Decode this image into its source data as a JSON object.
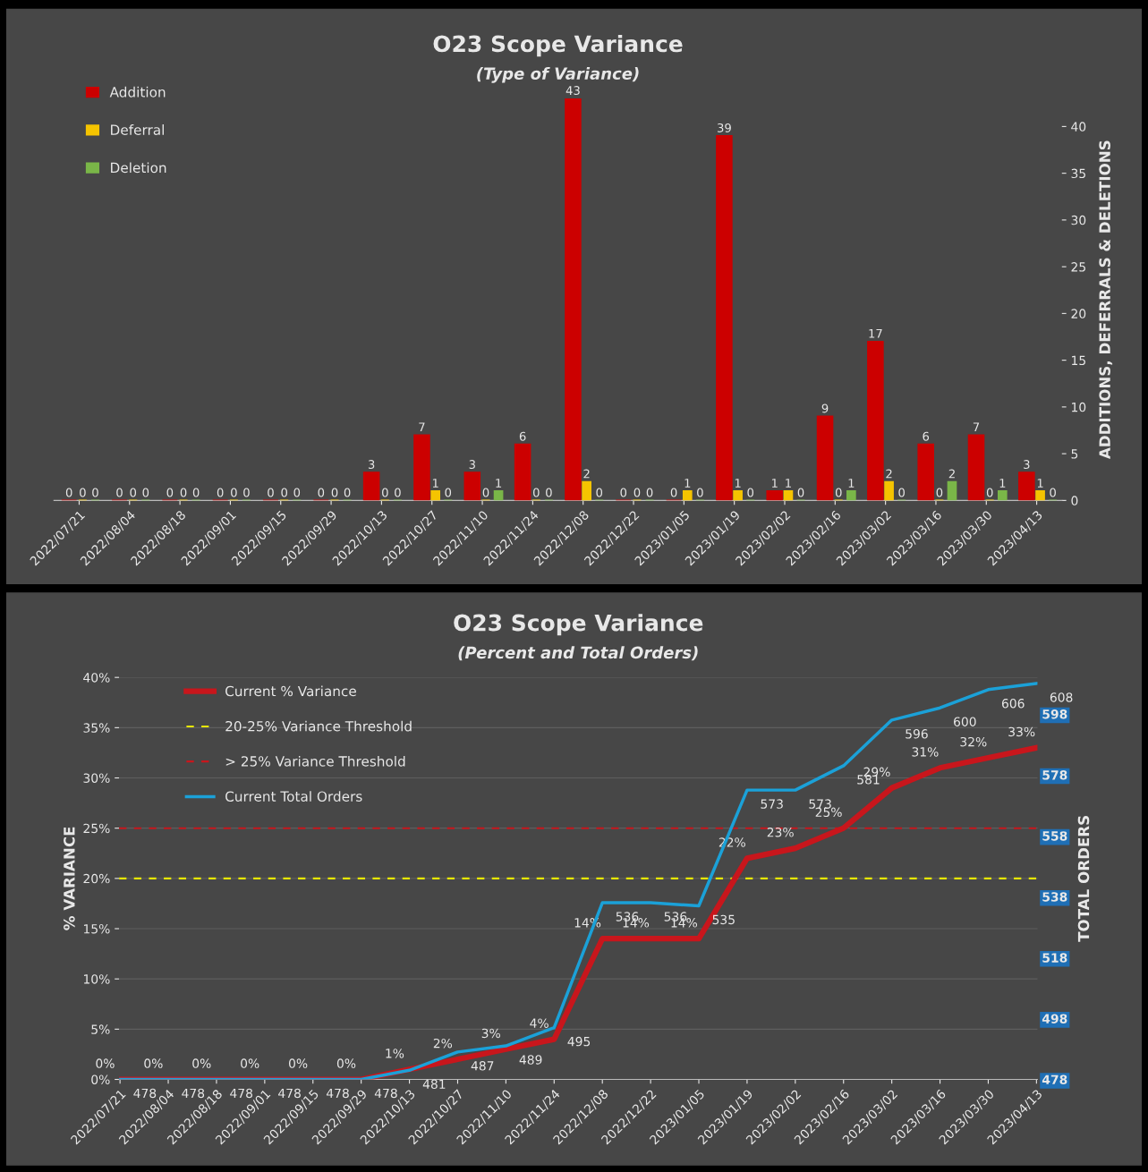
{
  "chart_data": [
    {
      "type": "bar",
      "title": "O23 Scope Variance",
      "subtitle": "(Type of Variance)",
      "ylabel": "ADDITIONS, DEFERRALS & DELETIONS",
      "categories": [
        "2022/07/21",
        "2022/08/04",
        "2022/08/18",
        "2022/09/01",
        "2022/09/15",
        "2022/09/29",
        "2022/10/13",
        "2022/10/27",
        "2022/11/10",
        "2022/11/24",
        "2022/12/08",
        "2022/12/22",
        "2023/01/05",
        "2023/01/19",
        "2023/02/02",
        "2023/02/16",
        "2023/03/02",
        "2023/03/16",
        "2023/03/30",
        "2023/04/13"
      ],
      "series": [
        {
          "name": "Addition",
          "color": "#cc0000",
          "values": [
            0,
            0,
            0,
            0,
            0,
            0,
            3,
            7,
            3,
            6,
            43,
            0,
            0,
            39,
            1,
            9,
            17,
            6,
            7,
            3
          ]
        },
        {
          "name": "Deferral",
          "color": "#f5c400",
          "values": [
            0,
            0,
            0,
            0,
            0,
            0,
            0,
            1,
            0,
            0,
            2,
            0,
            1,
            1,
            1,
            0,
            2,
            0,
            0,
            1
          ]
        },
        {
          "name": "Deletion",
          "color": "#7ab648",
          "values": [
            0,
            0,
            0,
            0,
            0,
            0,
            0,
            0,
            1,
            0,
            0,
            0,
            0,
            0,
            0,
            1,
            0,
            2,
            1,
            0
          ]
        }
      ],
      "ylim": [
        0,
        43
      ],
      "yticks": [
        0,
        5,
        10,
        15,
        20,
        25,
        30,
        35,
        40
      ],
      "data_labels": true,
      "legend": "top left",
      "grid": false
    },
    {
      "type": "line",
      "title": "O23 Scope Variance",
      "subtitle": "(Percent and Total Orders)",
      "ylabel": "% VARIANCE",
      "y2label": "TOTAL ORDERS",
      "categories": [
        "2022/07/21",
        "2022/08/04",
        "2022/08/18",
        "2022/09/01",
        "2022/09/15",
        "2022/09/29",
        "2022/10/13",
        "2022/10/27",
        "2022/11/10",
        "2022/11/24",
        "2022/12/08",
        "2022/12/22",
        "2023/01/05",
        "2023/01/19",
        "2023/02/02",
        "2023/02/16",
        "2023/03/02",
        "2023/03/16",
        "2023/03/30",
        "2023/04/13"
      ],
      "series": [
        {
          "name": "Current % Variance",
          "color": "#c8161c",
          "values": [
            0,
            0,
            0,
            0,
            0,
            0,
            1,
            2,
            3,
            4,
            14,
            14,
            14,
            22,
            23,
            25,
            29,
            31,
            32,
            33
          ],
          "value_labels": [
            "0%",
            "0%",
            "0%",
            "0%",
            "0%",
            "0%",
            "1%",
            "2%",
            "3%",
            "4%",
            "14%",
            "14%",
            "14%",
            "22%",
            "23%",
            "25%",
            "29%",
            "31%",
            "32%",
            "33%"
          ]
        },
        {
          "name": "Current Total Orders",
          "color": "#1ba1d8",
          "axis": "y2",
          "values": [
            478,
            478,
            478,
            478,
            478,
            478,
            481,
            487,
            489,
            495,
            536,
            536,
            535,
            573,
            573,
            581,
            596,
            600,
            606,
            608
          ],
          "value_labels": [
            "478",
            "478",
            "478",
            "478",
            "478",
            "478",
            "481",
            "487",
            "489",
            "495",
            "536",
            "536",
            "535",
            "573",
            "573",
            "581",
            "596",
            "600",
            "606",
            "608"
          ]
        }
      ],
      "ylim": [
        0,
        40
      ],
      "yticks": [
        {
          "value": 0,
          "label": "0%"
        },
        {
          "value": 5,
          "label": "5%"
        },
        {
          "value": 10,
          "label": "10%"
        },
        {
          "value": 15,
          "label": "15%"
        },
        {
          "value": 20,
          "label": "20%"
        },
        {
          "value": 25,
          "label": "25%"
        },
        {
          "value": 30,
          "label": "30%"
        },
        {
          "value": 35,
          "label": "35%"
        },
        {
          "value": 40,
          "label": "40%"
        }
      ],
      "y2lim": [
        478,
        610
      ],
      "y2ticks": [
        478,
        498,
        518,
        538,
        558,
        578,
        598
      ],
      "ref_lines": [
        {
          "axis": "y",
          "value": 20,
          "label": "20-25% Variance Threshold",
          "color": "#e6e600",
          "line_style": "dashed"
        },
        {
          "axis": "y",
          "value": 25,
          "label": "> 25% Variance Threshold",
          "color": "#c8161c",
          "line_style": "dashed"
        }
      ],
      "grid": "y",
      "legend": "top left"
    }
  ]
}
